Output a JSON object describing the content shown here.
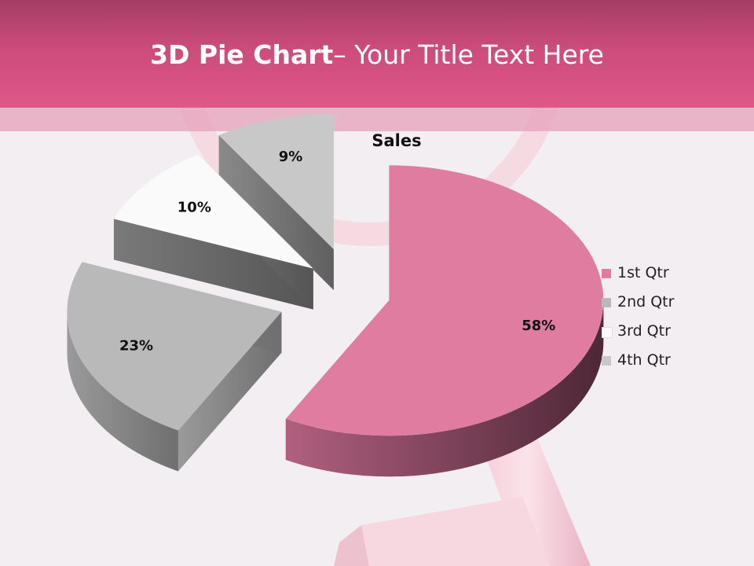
{
  "slide": {
    "title_bold": "3D Pie Chart",
    "title_rest": "– Your Title Text Here"
  },
  "colors": {
    "header": "#d85584",
    "background": "#f3eef2",
    "accent_pink": "#e07c9f"
  },
  "chart_data": {
    "type": "pie",
    "title": "Sales",
    "categories": [
      "1st Qtr",
      "2nd Qtr",
      "3rd Qtr",
      "4th Qtr"
    ],
    "values": [
      58,
      23,
      10,
      9
    ],
    "data_labels": [
      "58%",
      "23%",
      "10%",
      "9%"
    ],
    "legend_position": "right",
    "exploded": true,
    "three_d": true,
    "colors": [
      "#e07c9f",
      "#b9b9b9",
      "#fafafa",
      "#c8c8c8"
    ]
  }
}
